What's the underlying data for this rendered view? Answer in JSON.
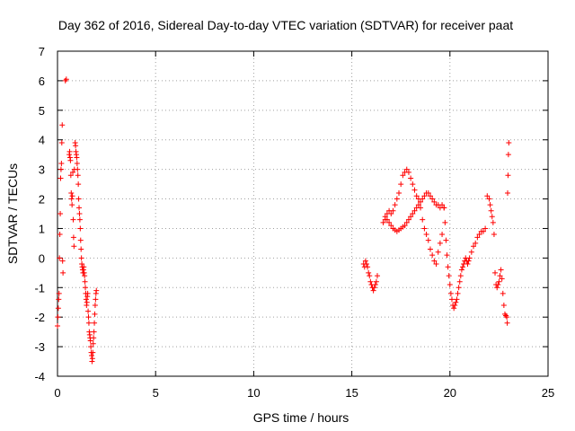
{
  "chart_data": {
    "type": "scatter",
    "title": "Day 362 of 2016, Sidereal Day-to-day VTEC variation (SDTVAR) for receiver paat",
    "xlabel": "GPS time / hours",
    "ylabel": "SDTVAR / TECUs",
    "xlim": [
      0,
      25
    ],
    "ylim": [
      -4,
      7
    ],
    "xticks": [
      0,
      5,
      10,
      15,
      20,
      25
    ],
    "yticks": [
      -4,
      -3,
      -2,
      -1,
      0,
      1,
      2,
      3,
      4,
      5,
      6,
      7
    ],
    "grid": true,
    "marker": "+",
    "color": "#ff0000",
    "series": [
      {
        "name": "SDTVAR",
        "x": [
          0.0,
          0.02,
          0.04,
          0.06,
          0.08,
          0.1,
          0.12,
          0.14,
          0.16,
          0.18,
          0.2,
          0.22,
          0.24,
          0.26,
          0.28,
          0.4,
          0.45,
          0.6,
          0.62,
          0.64,
          0.66,
          0.68,
          0.7,
          0.72,
          0.74,
          0.76,
          0.78,
          0.8,
          0.82,
          0.84,
          0.86,
          0.9,
          0.92,
          0.94,
          0.96,
          0.98,
          1.0,
          1.02,
          1.04,
          1.06,
          1.08,
          1.1,
          1.12,
          1.14,
          1.16,
          1.18,
          1.2,
          1.22,
          1.24,
          1.26,
          1.28,
          1.3,
          1.32,
          1.34,
          1.36,
          1.38,
          1.4,
          1.42,
          1.44,
          1.46,
          1.48,
          1.5,
          1.52,
          1.54,
          1.56,
          1.58,
          1.6,
          1.62,
          1.64,
          1.66,
          1.68,
          1.7,
          1.72,
          1.74,
          1.76,
          1.78,
          1.8,
          1.82,
          1.84,
          1.86,
          1.88,
          1.9,
          1.92,
          1.94,
          1.96,
          1.98,
          15.6,
          15.65,
          15.7,
          15.75,
          15.8,
          15.85,
          15.9,
          15.95,
          16.0,
          16.05,
          16.1,
          16.15,
          16.2,
          16.25,
          16.3,
          16.6,
          16.7,
          16.8,
          16.9,
          17.0,
          17.1,
          17.2,
          17.3,
          17.4,
          17.5,
          17.6,
          17.7,
          17.8,
          17.9,
          18.0,
          18.1,
          18.2,
          18.3,
          18.4,
          18.5,
          18.6,
          18.7,
          18.8,
          18.9,
          19.0,
          19.1,
          19.2,
          19.3,
          19.4,
          19.5,
          19.6,
          19.7,
          16.7,
          16.8,
          16.9,
          17.0,
          17.1,
          17.2,
          17.3,
          17.4,
          17.5,
          17.6,
          17.7,
          17.8,
          17.9,
          18.0,
          18.1,
          18.2,
          18.3,
          18.4,
          18.5,
          18.6,
          18.7,
          18.8,
          18.9,
          19.0,
          19.1,
          19.2,
          19.3,
          19.4,
          19.5,
          19.6,
          19.7,
          19.75,
          19.8,
          19.85,
          19.9,
          19.95,
          20.0,
          20.05,
          20.1,
          20.15,
          20.2,
          20.25,
          20.3,
          20.35,
          20.4,
          20.45,
          20.5,
          20.55,
          20.6,
          20.65,
          20.7,
          20.75,
          20.8,
          20.85,
          20.9,
          20.95,
          21.0,
          21.1,
          21.2,
          21.3,
          21.4,
          21.5,
          21.6,
          21.7,
          21.8,
          21.9,
          22.0,
          22.05,
          22.1,
          22.15,
          22.2,
          22.25,
          22.3,
          22.35,
          22.4,
          22.45,
          22.5,
          22.55,
          22.6,
          22.65,
          22.7,
          22.75,
          22.8,
          22.85,
          22.9,
          22.92,
          22.94,
          22.96,
          22.98,
          23.0
        ],
        "y": [
          -2.3,
          -2.0,
          -1.7,
          -1.4,
          -1.2,
          0.0,
          0.8,
          1.5,
          2.7,
          3.0,
          3.2,
          3.9,
          4.5,
          -0.1,
          -0.5,
          6.0,
          6.05,
          3.5,
          3.6,
          3.4,
          3.3,
          2.8,
          2.2,
          2.0,
          1.8,
          2.1,
          2.9,
          1.3,
          0.7,
          0.4,
          3.0,
          3.9,
          3.8,
          3.6,
          3.5,
          3.4,
          3.2,
          3.0,
          2.8,
          2.5,
          2.0,
          1.7,
          1.5,
          1.3,
          1.0,
          0.6,
          0.3,
          0.0,
          -0.2,
          -0.3,
          -0.4,
          -0.5,
          -0.4,
          -0.3,
          -0.5,
          -0.6,
          -0.8,
          -1.0,
          -1.2,
          -1.4,
          -1.6,
          -1.5,
          -1.3,
          -1.2,
          -1.8,
          -2.0,
          -2.2,
          -2.5,
          -2.6,
          -2.7,
          -2.8,
          -3.0,
          -3.2,
          -3.3,
          -3.5,
          -3.4,
          -3.2,
          -2.9,
          -2.7,
          -2.5,
          -2.2,
          -1.9,
          -1.6,
          -1.4,
          -1.2,
          -1.1,
          -0.2,
          -0.3,
          -0.1,
          -0.2,
          -0.3,
          -0.5,
          -0.6,
          -0.8,
          -0.9,
          -1.0,
          -1.1,
          -1.0,
          -0.9,
          -0.8,
          -0.6,
          1.2,
          1.3,
          1.5,
          1.6,
          1.5,
          1.6,
          1.8,
          2.0,
          2.2,
          2.5,
          2.8,
          2.9,
          3.0,
          2.9,
          2.7,
          2.5,
          2.3,
          2.1,
          2.0,
          1.7,
          1.3,
          1.0,
          0.8,
          0.6,
          0.3,
          0.1,
          -0.1,
          -0.2,
          0.2,
          0.5,
          0.8,
          1.7,
          1.4,
          1.3,
          1.2,
          1.1,
          1.0,
          0.95,
          0.9,
          0.95,
          1.0,
          1.05,
          1.1,
          1.2,
          1.3,
          1.4,
          1.5,
          1.6,
          1.7,
          1.8,
          1.9,
          2.0,
          2.1,
          2.2,
          2.2,
          2.1,
          2.0,
          1.9,
          1.8,
          1.8,
          1.7,
          1.8,
          1.7,
          1.2,
          0.6,
          0.1,
          -0.3,
          -0.6,
          -0.9,
          -1.2,
          -1.4,
          -1.6,
          -1.7,
          -1.6,
          -1.5,
          -1.4,
          -1.2,
          -1.0,
          -0.8,
          -0.6,
          -0.4,
          -0.3,
          -0.2,
          -0.1,
          0.0,
          -0.1,
          -0.2,
          -0.1,
          0.0,
          0.2,
          0.4,
          0.5,
          0.7,
          0.8,
          0.9,
          0.9,
          1.0,
          2.1,
          2.0,
          1.8,
          1.6,
          1.4,
          1.2,
          0.8,
          -0.5,
          -0.9,
          -1.0,
          -0.9,
          -0.8,
          -0.6,
          -0.4,
          -0.7,
          -1.2,
          -1.6,
          -1.9,
          -1.95,
          -2.0,
          -2.2,
          2.2,
          2.8,
          3.5,
          3.9
        ]
      }
    ]
  }
}
